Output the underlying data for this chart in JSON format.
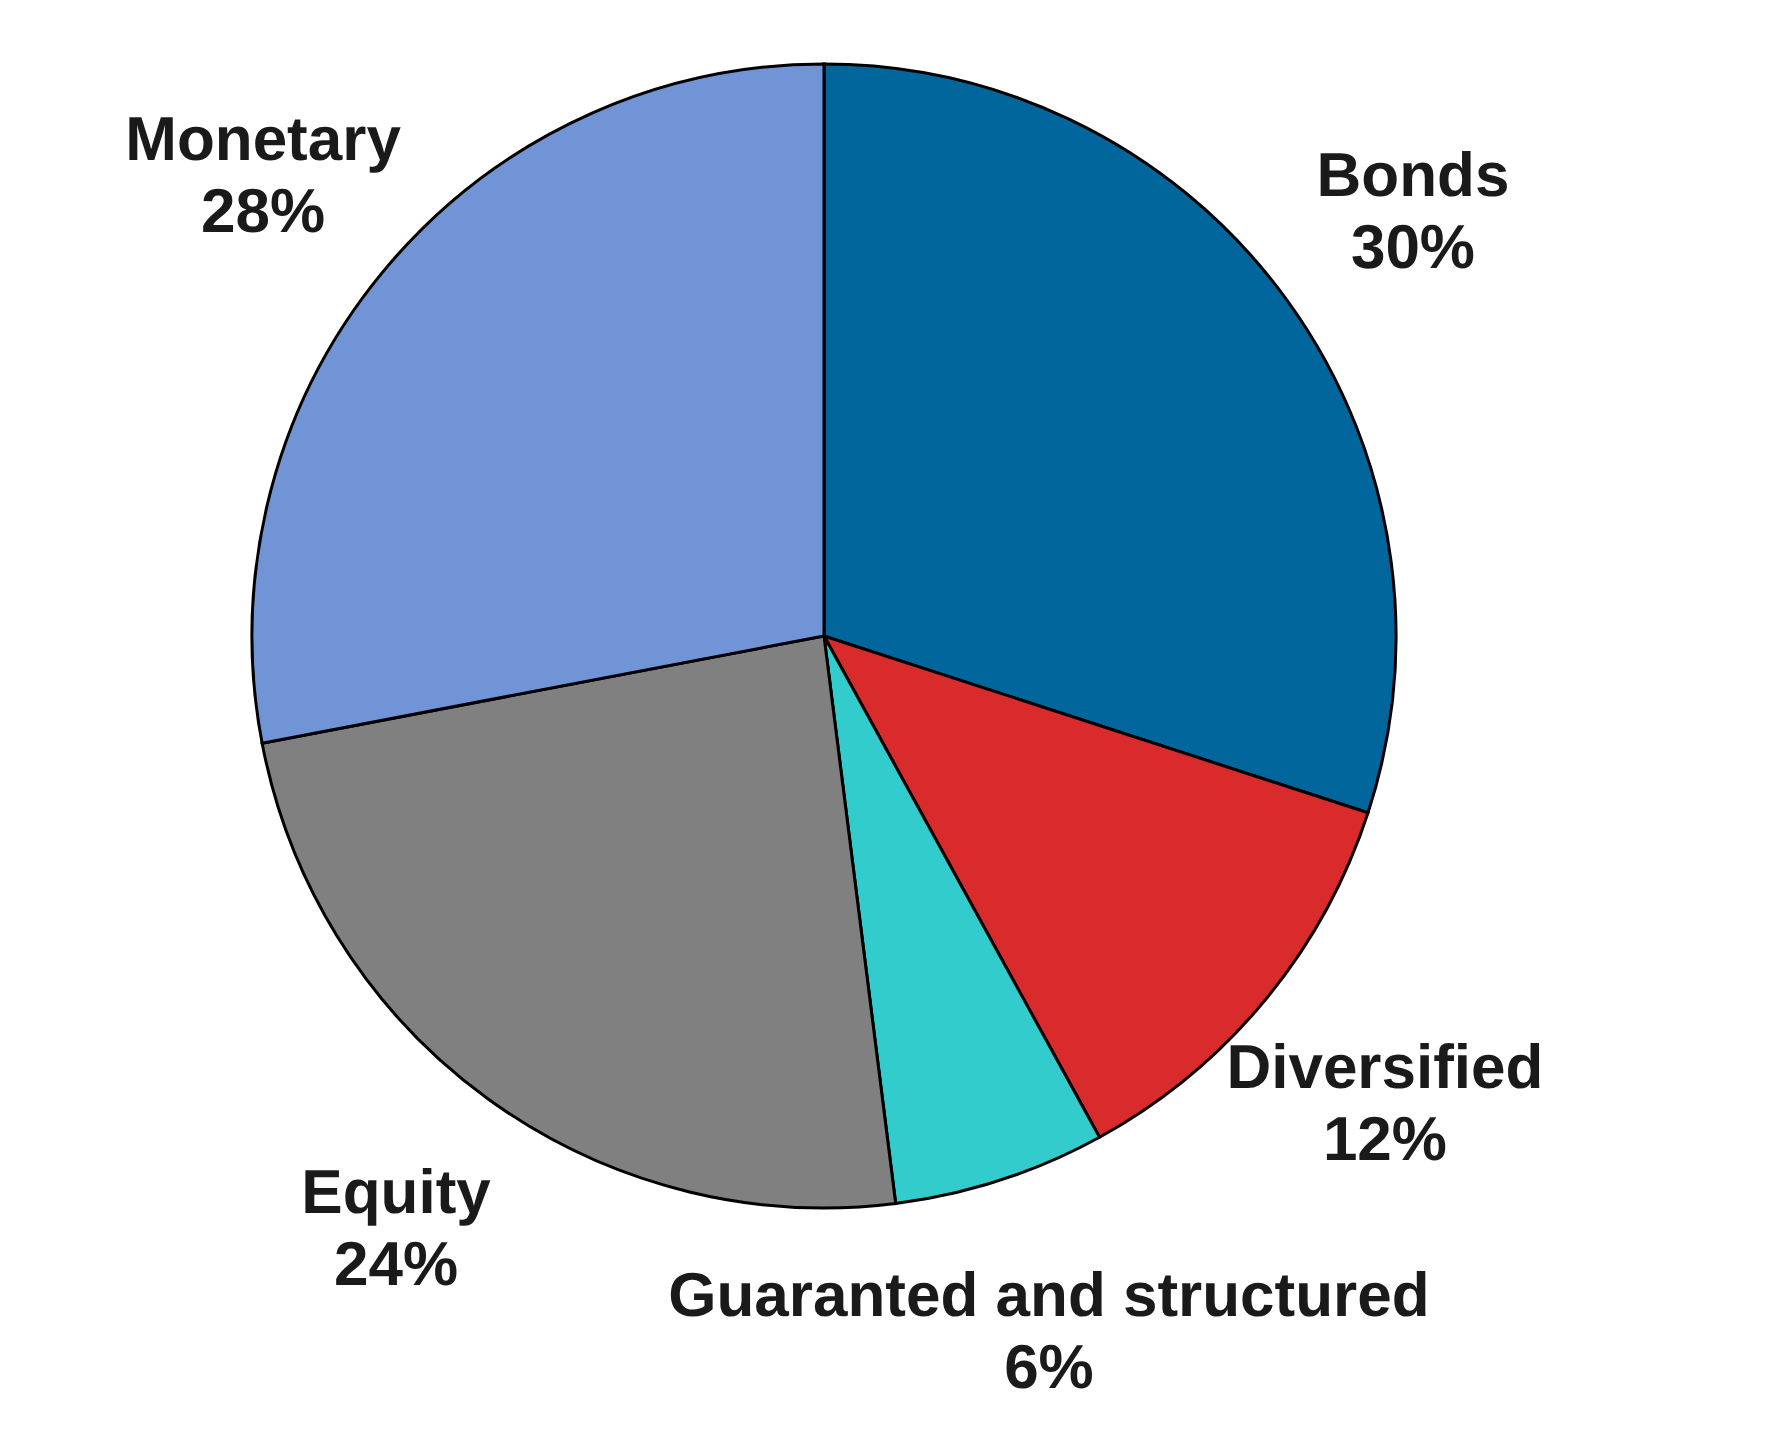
{
  "chart_data": {
    "type": "pie",
    "categories": [
      "Bonds",
      "Diversified",
      "Guaranted and structured",
      "Equity",
      "Monetary"
    ],
    "values": [
      30,
      12,
      6,
      24,
      28
    ],
    "value_labels": [
      "30%",
      "12%",
      "6%",
      "24%",
      "28%"
    ],
    "colors": [
      "#00669c",
      "#d92b2b",
      "#33cccc",
      "#808080",
      "#7094d6"
    ]
  }
}
